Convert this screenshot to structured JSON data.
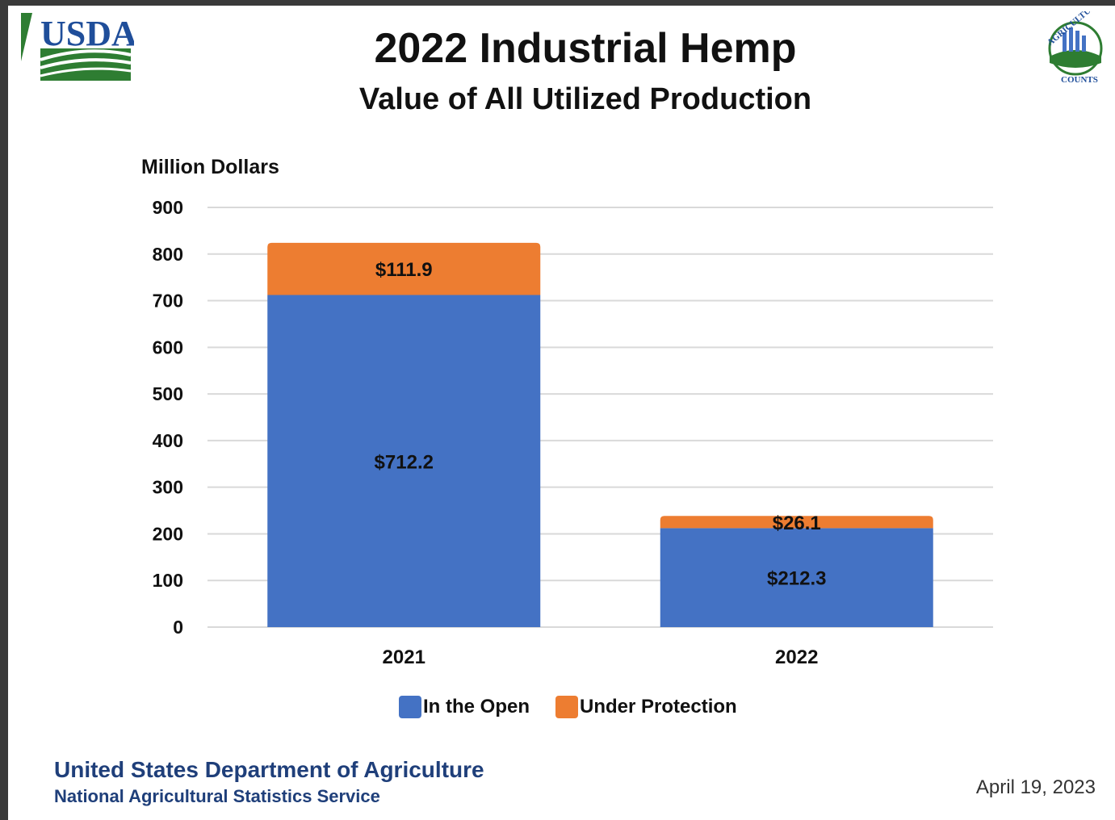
{
  "header": {
    "logo_text": "USDA",
    "seal_text_top": "AGRICULTURE",
    "seal_text_bottom": "COUNTS"
  },
  "chart_data": {
    "type": "bar",
    "stacked": true,
    "title": "2022 Industrial Hemp",
    "subtitle": "Value of All Utilized Production",
    "ylabel": "Million Dollars",
    "xlabel": "",
    "categories": [
      "2021",
      "2022"
    ],
    "series": [
      {
        "name": "In the Open",
        "color": "#4472c4",
        "values": [
          712.2,
          212.3
        ],
        "labels": [
          "$712.2",
          "$212.3"
        ]
      },
      {
        "name": "Under Protection",
        "color": "#ed7d31",
        "values": [
          111.9,
          26.1
        ],
        "labels": [
          "$111.9",
          "$26.1"
        ]
      }
    ],
    "ylim": [
      0,
      900
    ],
    "yticks": [
      0,
      100,
      200,
      300,
      400,
      500,
      600,
      700,
      800,
      900
    ],
    "grid": true,
    "legend_position": "bottom"
  },
  "footer": {
    "agency": "United States Department of Agriculture",
    "service": "National Agricultural Statistics Service",
    "date": "April 19, 2023"
  }
}
